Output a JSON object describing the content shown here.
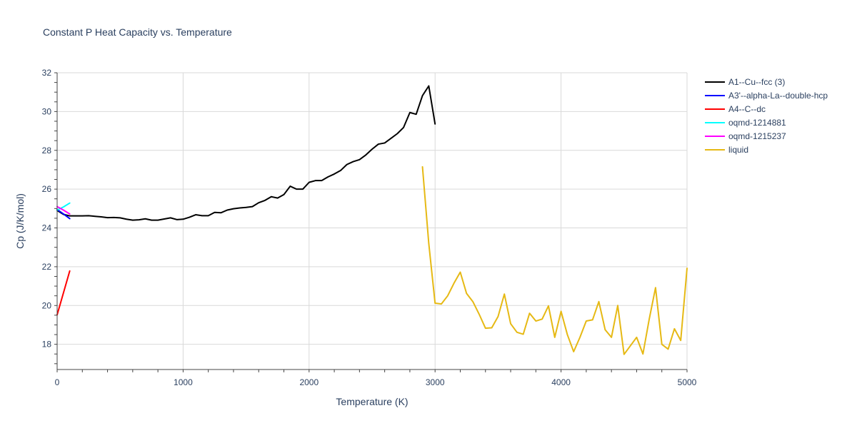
{
  "chart_data": {
    "type": "line",
    "title": "Constant P Heat Capacity vs. Temperature",
    "xlabel": "Temperature (K)",
    "ylabel": "Cp (J/K/mol)",
    "xlim": [
      0,
      5000
    ],
    "ylim": [
      16.7,
      32
    ],
    "xticks": [
      0,
      1000,
      2000,
      3000,
      4000,
      5000
    ],
    "yticks": [
      18,
      20,
      22,
      24,
      26,
      28,
      30,
      32
    ],
    "grid": true,
    "legend_position": "top-right",
    "series": [
      {
        "name": "A1--Cu--fcc (3)",
        "color": "#000000",
        "x": [
          0,
          50,
          100,
          150,
          200,
          250,
          300,
          350,
          400,
          450,
          500,
          550,
          600,
          650,
          700,
          750,
          800,
          850,
          900,
          950,
          1000,
          1050,
          1100,
          1150,
          1200,
          1250,
          1300,
          1350,
          1400,
          1450,
          1500,
          1550,
          1600,
          1650,
          1700,
          1750,
          1800,
          1850,
          1900,
          1950,
          2000,
          2050,
          2100,
          2150,
          2200,
          2250,
          2300,
          2350,
          2400,
          2450,
          2500,
          2550,
          2600,
          2650,
          2700,
          2750,
          2800,
          2850,
          2900,
          2950,
          3000
        ],
        "y": [
          24.9,
          24.7,
          24.62,
          24.62,
          24.62,
          24.63,
          24.6,
          24.57,
          24.53,
          24.54,
          24.52,
          24.45,
          24.4,
          24.42,
          24.47,
          24.4,
          24.4,
          24.46,
          24.52,
          24.43,
          24.45,
          24.55,
          24.68,
          24.63,
          24.63,
          24.8,
          24.78,
          24.92,
          24.99,
          25.03,
          25.06,
          25.1,
          25.3,
          25.42,
          25.61,
          25.54,
          25.72,
          26.15,
          26.0,
          26.0,
          26.35,
          26.44,
          26.44,
          26.63,
          26.78,
          26.96,
          27.27,
          27.42,
          27.52,
          27.76,
          28.06,
          28.32,
          28.38,
          28.62,
          28.86,
          29.18,
          29.95,
          29.86,
          30.82,
          31.32,
          29.36
        ]
      },
      {
        "name": "A3'--alpha-La--double-hcp",
        "color": "#0000ff",
        "x": [
          0,
          50,
          100
        ],
        "y": [
          24.95,
          24.72,
          24.48
        ]
      },
      {
        "name": "A4--C--dc",
        "color": "#ff0000",
        "x": [
          0,
          50,
          100
        ],
        "y": [
          19.52,
          20.65,
          21.78
        ]
      },
      {
        "name": "oqmd-1214881",
        "color": "#00ffff",
        "x": [
          0,
          50,
          100
        ],
        "y": [
          24.92,
          25.08,
          25.28
        ]
      },
      {
        "name": "oqmd-1215237",
        "color": "#ff00ff",
        "x": [
          0,
          50,
          100
        ],
        "y": [
          25.1,
          24.92,
          24.72
        ]
      },
      {
        "name": "liquid",
        "color": "#e6b914",
        "x": [
          2900,
          2950,
          3000,
          3050,
          3100,
          3150,
          3200,
          3250,
          3300,
          3350,
          3400,
          3450,
          3500,
          3550,
          3600,
          3650,
          3700,
          3750,
          3800,
          3850,
          3900,
          3950,
          4000,
          4050,
          4100,
          4150,
          4200,
          4250,
          4300,
          4350,
          4400,
          4450,
          4500,
          4550,
          4600,
          4650,
          4700,
          4750,
          4800,
          4850,
          4900,
          4950,
          5000
        ],
        "y": [
          27.15,
          23.2,
          20.12,
          20.08,
          20.5,
          21.15,
          21.72,
          20.62,
          20.2,
          19.55,
          18.83,
          18.85,
          19.43,
          20.59,
          19.06,
          18.62,
          18.52,
          19.6,
          19.2,
          19.3,
          19.98,
          18.36,
          19.7,
          18.5,
          17.62,
          18.36,
          19.2,
          19.26,
          20.2,
          18.75,
          18.36,
          20.0,
          17.48,
          17.92,
          18.36,
          17.5,
          19.3,
          20.92,
          18.0,
          17.75,
          18.8,
          18.2,
          21.92
        ]
      }
    ]
  }
}
